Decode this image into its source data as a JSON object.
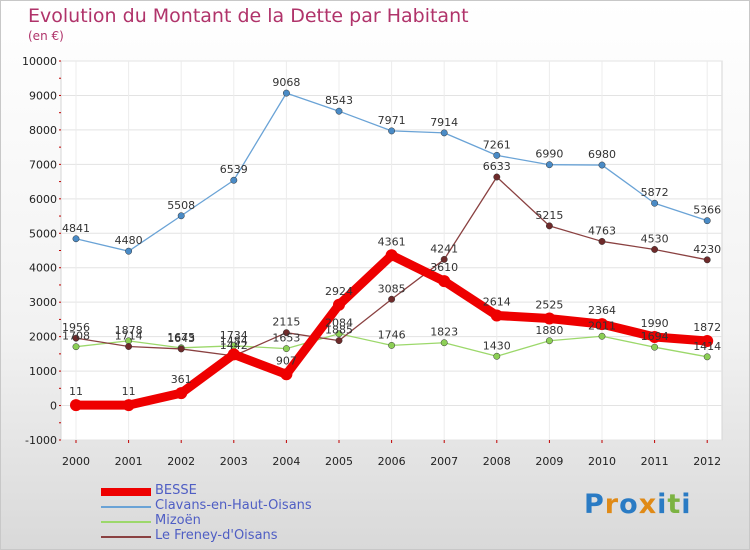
{
  "header": {
    "title": "Evolution du Montant de la Dette par Habitant",
    "unit": "(en €)"
  },
  "chart_data": {
    "type": "line",
    "title": "Evolution du Montant de la Dette par Habitant",
    "ylabel": "(en €)",
    "xlabel": "",
    "ylim": [
      -1000,
      10000
    ],
    "yticks": [
      -1000,
      0,
      1000,
      2000,
      3000,
      4000,
      5000,
      6000,
      7000,
      8000,
      9000,
      10000
    ],
    "categories": [
      "2000",
      "2001",
      "2002",
      "2003",
      "2004",
      "2005",
      "2006",
      "2007",
      "2008",
      "2009",
      "2010",
      "2011",
      "2012"
    ],
    "series": [
      {
        "name": "Clavans-en-Haut-Oisans",
        "color": "#6aa3d6",
        "marker": "#4a8bc6",
        "values": [
          4841,
          4480,
          5508,
          6539,
          9068,
          8543,
          7971,
          7914,
          7261,
          6990,
          6980,
          5872,
          5366
        ],
        "labels": [
          "4841",
          "4480",
          "5508",
          "6539",
          "9068",
          "8543",
          "7971",
          "7914",
          "7261",
          "6990",
          "6980",
          "5872",
          "5366"
        ]
      },
      {
        "name": "Mizoën",
        "color": "#9cd86b",
        "marker": "#8ccf55",
        "values": [
          1708,
          1878,
          1675,
          1734,
          1653,
          2084,
          1746,
          1823,
          1430,
          1880,
          2011,
          1694,
          1414
        ],
        "labels": [
          "1708",
          "1878",
          "1675",
          "1734",
          "1653",
          "2084",
          "1746",
          "1823",
          "1430",
          "1880",
          "2011",
          "1694",
          "1414"
        ]
      },
      {
        "name": "Le Freney-d'Oisans",
        "color": "#8a4141",
        "marker": "#6e2a2a",
        "values": [
          1956,
          1714,
          1643,
          1442,
          2115,
          1885,
          3085,
          4241,
          6633,
          5215,
          4763,
          4530,
          4230
        ],
        "labels": [
          "1956",
          "1714",
          "1643",
          "1442",
          "2115",
          "1885",
          "3085",
          "4241",
          "6633",
          "5215",
          "4763",
          "4530",
          "4230"
        ]
      },
      {
        "name": "BESSE",
        "color": "#ee0000",
        "marker": "#ee0000",
        "values": [
          11,
          11,
          361,
          1484,
          907,
          2924,
          4361,
          3610,
          2614,
          2525,
          2364,
          1990,
          1872
        ],
        "labels": [
          "11",
          "11",
          "361",
          "1484",
          "907",
          "2924",
          "4361",
          "3610",
          "2614",
          "2525",
          "2364",
          "1990",
          "1872"
        ]
      }
    ],
    "legend": [
      "BESSE",
      "Clavans-en-Haut-Oisans",
      "Mizoën",
      "Le Freney-d'Oisans"
    ],
    "legend_position": "bottom-left"
  },
  "legend": {
    "besse": "BESSE",
    "clavans": "Clavans-en-Haut-Oisans",
    "mizoen": "Mizoën",
    "freney": "Le Freney-d'Oisans"
  },
  "colors": {
    "title": "#b0336a",
    "legend_text": "#4f5ec4"
  },
  "logo": {
    "text": "Proxiti",
    "letters": [
      "P",
      "r",
      "o",
      "x",
      "i",
      "t",
      "i"
    ],
    "colors": [
      "#2a7bc4",
      "#e08a16",
      "#2a7bc4",
      "#e08a16",
      "#2a7bc4",
      "#7cb342",
      "#2a7bc4"
    ]
  }
}
